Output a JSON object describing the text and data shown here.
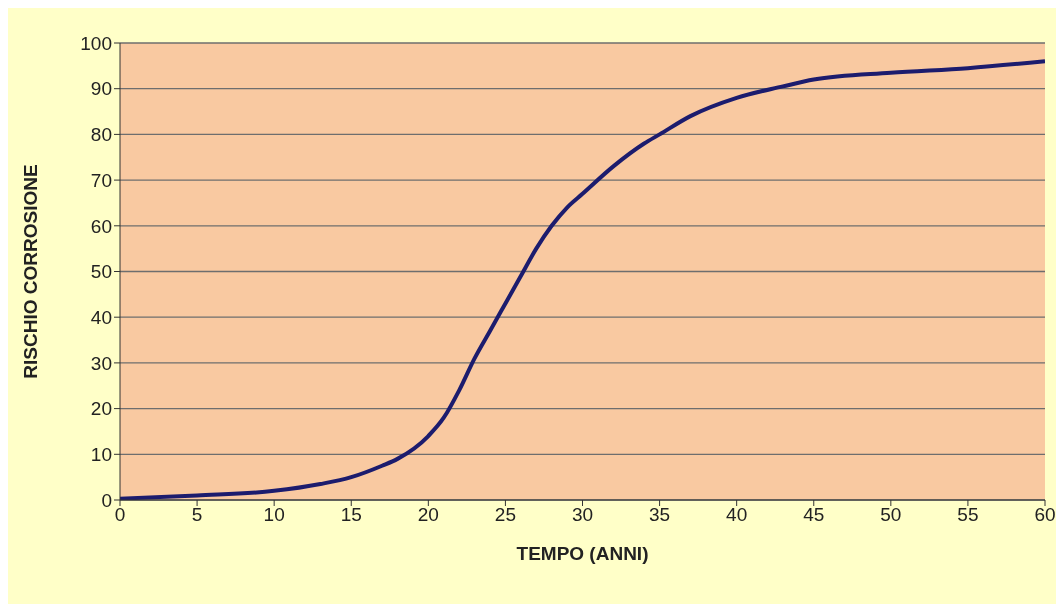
{
  "chart_data": {
    "type": "line",
    "xlabel": "TEMPO (ANNI)",
    "ylabel": "RISCHIO CORROSIONE",
    "x": [
      0,
      5,
      10,
      13,
      15,
      17,
      18,
      20,
      21,
      22,
      23,
      24,
      25,
      26,
      27,
      28,
      29,
      30,
      32,
      34,
      35,
      37,
      40,
      43,
      45,
      50,
      55,
      60
    ],
    "series": [
      {
        "color": "#1c1c6e",
        "values": [
          0.3,
          1,
          2,
          3.5,
          5,
          7.5,
          9,
          14,
          18,
          24,
          31,
          37,
          43,
          49,
          55,
          60,
          64,
          67,
          73,
          78,
          80,
          84,
          88,
          90.5,
          92,
          93.5,
          94.5,
          96
        ]
      }
    ],
    "xlim": [
      0,
      60
    ],
    "xticks": [
      0,
      5,
      10,
      15,
      20,
      25,
      30,
      35,
      40,
      45,
      50,
      55,
      60
    ],
    "ylim": [
      0,
      100
    ],
    "yticks": [
      0,
      10,
      20,
      30,
      40,
      50,
      60,
      70,
      80,
      90,
      100
    ],
    "grid": "y",
    "legend": false,
    "marker": "none",
    "line_style": "solid"
  }
}
